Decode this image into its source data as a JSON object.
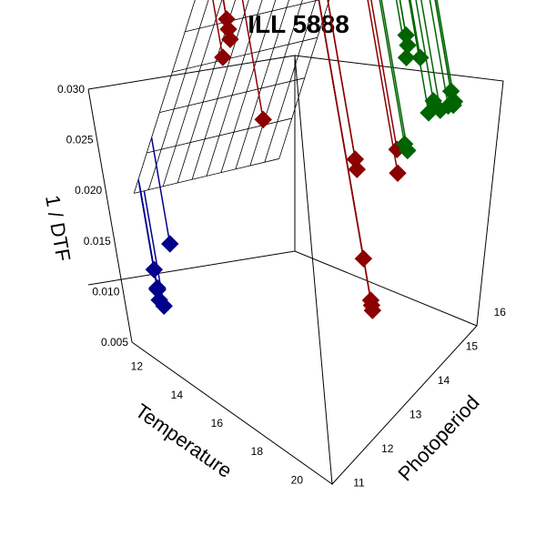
{
  "chart_data": {
    "type": "scatter",
    "title": "ILL 5888",
    "xlabel": "Temperature",
    "ylabel": "Photoperiod",
    "zlabel": "1 / DTF",
    "x_ticks": [
      "12",
      "14",
      "16",
      "18",
      "20"
    ],
    "y_ticks": [
      "11",
      "12",
      "13",
      "14",
      "15",
      "16"
    ],
    "z_ticks": [
      "0.005",
      "0.010",
      "0.015",
      "0.020",
      "0.025",
      "0.030"
    ],
    "xlim": [
      11,
      21
    ],
    "ylim": [
      10.7,
      16.5
    ],
    "zlim": [
      0.005,
      0.03
    ],
    "surface": {
      "intercept": -0.04,
      "temperature_coef": 0.0018,
      "photoperiod_coef": 0.0035
    },
    "colors": {
      "surface": "#000000",
      "blue_group": "#00008B",
      "red_group": "#8B0000",
      "green_group": "#006400"
    },
    "series": [
      {
        "color": "#00008B",
        "points": [
          {
            "x": 12.2,
            "y": 11.1,
            "z": 0.0125
          },
          {
            "x": 12.0,
            "y": 11.2,
            "z": 0.01
          },
          {
            "x": 12.6,
            "y": 11.0,
            "z": 0.0098
          },
          {
            "x": 12.1,
            "y": 11.15,
            "z": 0.0102
          },
          {
            "x": 12.3,
            "y": 11.05,
            "z": 0.011
          },
          {
            "x": 12.2,
            "y": 11.1,
            "z": 0.0095
          },
          {
            "x": 12.0,
            "y": 11.8,
            "z": 0.0124
          }
        ]
      },
      {
        "color": "#8B0000",
        "points": [
          {
            "x": 12.2,
            "y": 14.2,
            "z": 0.023
          },
          {
            "x": 12.6,
            "y": 14.3,
            "z": 0.025
          },
          {
            "x": 12.6,
            "y": 14.3,
            "z": 0.027
          },
          {
            "x": 12.6,
            "y": 14.3,
            "z": 0.026
          },
          {
            "x": 13.5,
            "y": 14.4,
            "z": 0.018
          },
          {
            "x": 19.0,
            "y": 13.8,
            "z": 0.014
          },
          {
            "x": 19.2,
            "y": 13.7,
            "z": 0.01
          },
          {
            "x": 19.2,
            "y": 13.7,
            "z": 0.0095
          },
          {
            "x": 19.2,
            "y": 13.7,
            "z": 0.0105
          },
          {
            "x": 16.8,
            "y": 15.2,
            "z": 0.016
          },
          {
            "x": 16.8,
            "y": 15.2,
            "z": 0.015
          },
          {
            "x": 18.5,
            "y": 15.6,
            "z": 0.018
          },
          {
            "x": 18.5,
            "y": 15.5,
            "z": 0.016
          }
        ]
      },
      {
        "color": "#006400",
        "points": [
          {
            "x": 18.7,
            "y": 15.8,
            "z": 0.0175
          },
          {
            "x": 18.6,
            "y": 15.8,
            "z": 0.018
          },
          {
            "x": 18.0,
            "y": 16.6,
            "z": 0.023
          },
          {
            "x": 18.2,
            "y": 16.6,
            "z": 0.0245
          },
          {
            "x": 18.2,
            "y": 16.6,
            "z": 0.0255
          },
          {
            "x": 18.6,
            "y": 16.7,
            "z": 0.0235
          },
          {
            "x": 19.5,
            "y": 16.2,
            "z": 0.021
          },
          {
            "x": 19.8,
            "y": 16.4,
            "z": 0.021
          },
          {
            "x": 20.1,
            "y": 16.5,
            "z": 0.0215
          },
          {
            "x": 20.4,
            "y": 16.5,
            "z": 0.022
          },
          {
            "x": 20.5,
            "y": 16.5,
            "z": 0.0225
          },
          {
            "x": 20.6,
            "y": 16.4,
            "z": 0.024
          },
          {
            "x": 19.5,
            "y": 16.4,
            "z": 0.0215
          }
        ]
      }
    ]
  }
}
